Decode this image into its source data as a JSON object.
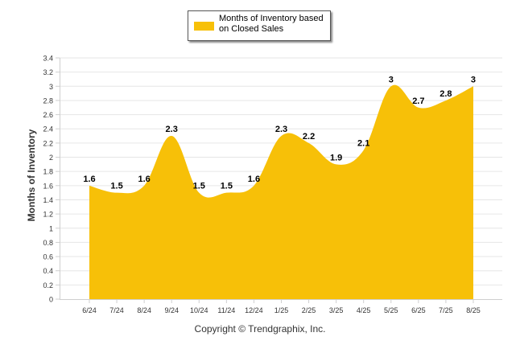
{
  "chart_data": {
    "type": "area",
    "categories": [
      "6/24",
      "7/24",
      "8/24",
      "9/24",
      "10/24",
      "11/24",
      "12/24",
      "1/25",
      "2/25",
      "3/25",
      "4/25",
      "5/25",
      "6/25",
      "7/25",
      "8/25"
    ],
    "series": [
      {
        "name": "Months of Inventory based on Closed Sales",
        "values": [
          1.6,
          1.5,
          1.6,
          2.3,
          1.5,
          1.5,
          1.6,
          2.3,
          2.2,
          1.9,
          2.1,
          3,
          2.7,
          2.8,
          3
        ],
        "labels": [
          "1.6",
          "1.5",
          "1.6",
          "2.3",
          "1.5",
          "1.5",
          "1.6",
          "2.3",
          "2.2",
          "1.9",
          "2.1",
          "3",
          "2.7",
          "2.8",
          "3"
        ]
      }
    ],
    "ylabel": "Months of Inventory",
    "ylim": [
      0,
      3.4
    ],
    "yticks": [
      "0",
      "0.2",
      "0.4",
      "0.6",
      "0.8",
      "1",
      "1.2",
      "1.4",
      "1.6",
      "1.8",
      "2",
      "2.2",
      "2.4",
      "2.6",
      "2.8",
      "3",
      "3.2",
      "3.4"
    ],
    "grid": true,
    "legend_position": "top-center",
    "colors": {
      "fill": "#F7C008",
      "grid": "#e6e6e6",
      "axis": "#cfcfcf",
      "text": "#333333"
    }
  },
  "legend": {
    "label": "Months of Inventory based on Closed Sales"
  },
  "footer": {
    "copyright": "Copyright © Trendgraphix, Inc."
  }
}
